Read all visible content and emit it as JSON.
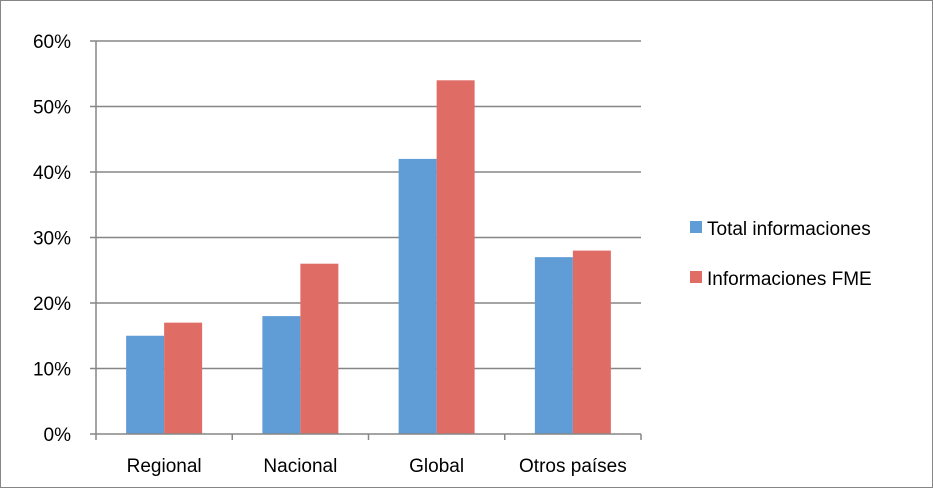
{
  "chart_data": {
    "type": "bar",
    "title": "",
    "xlabel": "",
    "ylabel": "",
    "categories": [
      "Regional",
      "Nacional",
      "Global",
      "Otros países"
    ],
    "series": [
      {
        "name": "Total informaciones",
        "color": "#609cd6",
        "values": [
          15,
          18,
          42,
          27
        ]
      },
      {
        "name": "Informaciones FME",
        "color": "#e06c66",
        "values": [
          17,
          26,
          54,
          28
        ]
      }
    ],
    "ylim": [
      0,
      60
    ],
    "yticks": [
      0,
      10,
      20,
      30,
      40,
      50,
      60
    ],
    "ytick_labels": [
      "0%",
      "10%",
      "20%",
      "30%",
      "40%",
      "50%",
      "60%"
    ],
    "grid": true,
    "legend_position": "right"
  }
}
